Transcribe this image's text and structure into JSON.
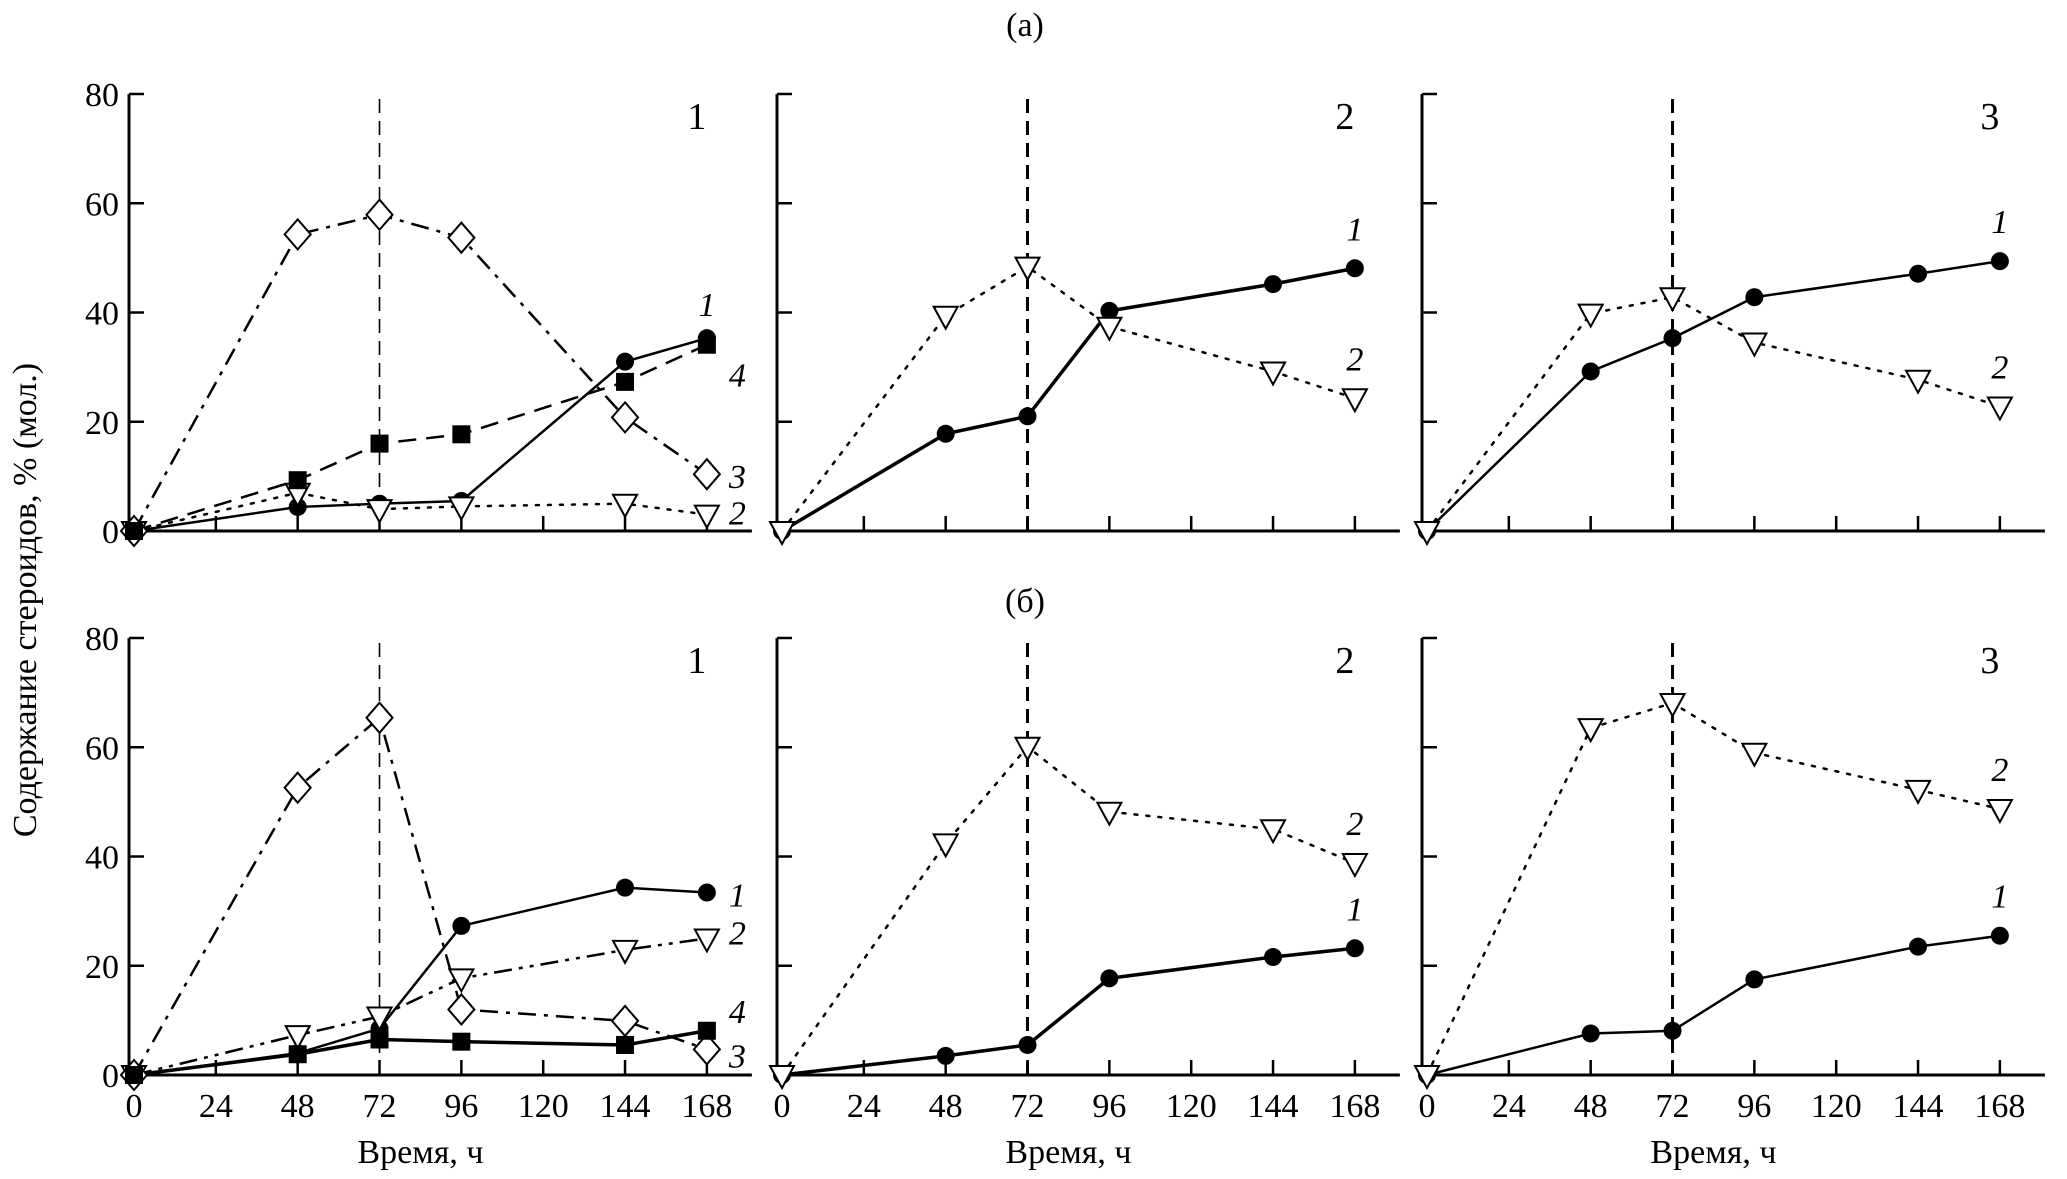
{
  "chart_data": {
    "type": "line",
    "figure_rows": [
      {
        "label": "(а)"
      },
      {
        "label": "(б)"
      }
    ],
    "ylabel": "Содержание стероидов, % (мол.)",
    "xlabel": "Время, ч",
    "x_ticks": [
      0,
      24,
      48,
      72,
      96,
      120,
      144,
      168
    ],
    "y_ticks": [
      0,
      20,
      40,
      60,
      80
    ],
    "xlim": [
      0,
      168
    ],
    "ylim": [
      0,
      80
    ],
    "reference_line_x": 72,
    "grid": false,
    "panels": [
      {
        "row": 0,
        "col": 0,
        "panel_label": "1",
        "series": [
          {
            "name": "1",
            "marker": "filled-circle",
            "line": "solid",
            "x": [
              0,
              48,
              72,
              96,
              144,
              168
            ],
            "y": [
              0,
              4.4,
              5.0,
              5.5,
              31.0,
              35.3
            ]
          },
          {
            "name": "2",
            "marker": "open-triangle-down",
            "line": "dotted",
            "x": [
              0,
              48,
              72,
              96,
              144,
              168
            ],
            "y": [
              0,
              7.0,
              4.0,
              4.5,
              5.0,
              3.0
            ]
          },
          {
            "name": "3",
            "marker": "open-diamond",
            "line": "dashdot",
            "x": [
              0,
              48,
              72,
              96,
              144,
              168
            ],
            "y": [
              0,
              54.3,
              57.9,
              53.7,
              20.8,
              10.4
            ]
          },
          {
            "name": "4",
            "marker": "filled-square",
            "line": "dashed",
            "x": [
              0,
              48,
              72,
              96,
              144,
              168
            ],
            "y": [
              0,
              9.3,
              16.0,
              17.7,
              27.3,
              34.1
            ]
          }
        ]
      },
      {
        "row": 0,
        "col": 1,
        "panel_label": "2",
        "series": [
          {
            "name": "1",
            "marker": "filled-circle",
            "line": "solid-thick",
            "x": [
              0,
              48,
              72,
              96,
              144,
              168
            ],
            "y": [
              0,
              17.8,
              21.0,
              40.3,
              45.2,
              48.1
            ]
          },
          {
            "name": "2",
            "marker": "open-triangle-down",
            "line": "dotted",
            "x": [
              0,
              48,
              72,
              96,
              144,
              168
            ],
            "y": [
              0,
              39.4,
              48.4,
              37.4,
              29.2,
              24.3
            ]
          }
        ]
      },
      {
        "row": 0,
        "col": 2,
        "panel_label": "3",
        "series": [
          {
            "name": "1",
            "marker": "filled-circle",
            "line": "solid",
            "x": [
              0,
              48,
              72,
              96,
              144,
              168
            ],
            "y": [
              0,
              29.2,
              35.3,
              42.8,
              47.1,
              49.4
            ]
          },
          {
            "name": "2",
            "marker": "open-triangle-down",
            "line": "dotted",
            "x": [
              0,
              48,
              72,
              96,
              144,
              168
            ],
            "y": [
              0,
              39.8,
              42.8,
              34.5,
              27.7,
              22.8
            ]
          }
        ]
      },
      {
        "row": 1,
        "col": 0,
        "panel_label": "1",
        "series": [
          {
            "name": "1",
            "marker": "filled-circle",
            "line": "solid",
            "x": [
              0,
              48,
              72,
              96,
              144,
              168
            ],
            "y": [
              0,
              4.0,
              8.5,
              27.3,
              34.3,
              33.4
            ]
          },
          {
            "name": "2",
            "marker": "open-triangle-down",
            "line": "dashdotdot",
            "x": [
              0,
              48,
              72,
              96,
              144,
              168
            ],
            "y": [
              0,
              7.3,
              10.7,
              17.7,
              22.9,
              25.0
            ]
          },
          {
            "name": "3",
            "marker": "open-diamond",
            "line": "dashdot",
            "x": [
              0,
              48,
              72,
              96,
              144,
              168
            ],
            "y": [
              0,
              52.6,
              65.4,
              12.0,
              9.9,
              4.7
            ]
          },
          {
            "name": "4",
            "marker": "filled-square",
            "line": "solid-thick",
            "x": [
              0,
              48,
              72,
              96,
              144,
              168
            ],
            "y": [
              0,
              3.8,
              6.5,
              6.1,
              5.5,
              8.1
            ]
          }
        ]
      },
      {
        "row": 1,
        "col": 1,
        "panel_label": "2",
        "series": [
          {
            "name": "1",
            "marker": "filled-circle",
            "line": "solid-thick",
            "x": [
              0,
              48,
              72,
              96,
              144,
              168
            ],
            "y": [
              0,
              3.5,
              5.5,
              17.7,
              21.6,
              23.2
            ]
          },
          {
            "name": "2",
            "marker": "open-triangle-down",
            "line": "dotted",
            "x": [
              0,
              48,
              72,
              96,
              144,
              168
            ],
            "y": [
              0,
              42.4,
              60.1,
              48.2,
              45.0,
              38.8
            ]
          }
        ]
      },
      {
        "row": 1,
        "col": 2,
        "panel_label": "3",
        "series": [
          {
            "name": "1",
            "marker": "filled-circle",
            "line": "solid",
            "x": [
              0,
              48,
              72,
              96,
              144,
              168
            ],
            "y": [
              0,
              7.6,
              8.1,
              17.5,
              23.5,
              25.5
            ]
          },
          {
            "name": "2",
            "marker": "open-triangle-down",
            "line": "dotted",
            "x": [
              0,
              48,
              72,
              96,
              144,
              168
            ],
            "y": [
              0,
              63.5,
              68.1,
              59.0,
              52.2,
              48.7
            ]
          }
        ]
      }
    ]
  }
}
